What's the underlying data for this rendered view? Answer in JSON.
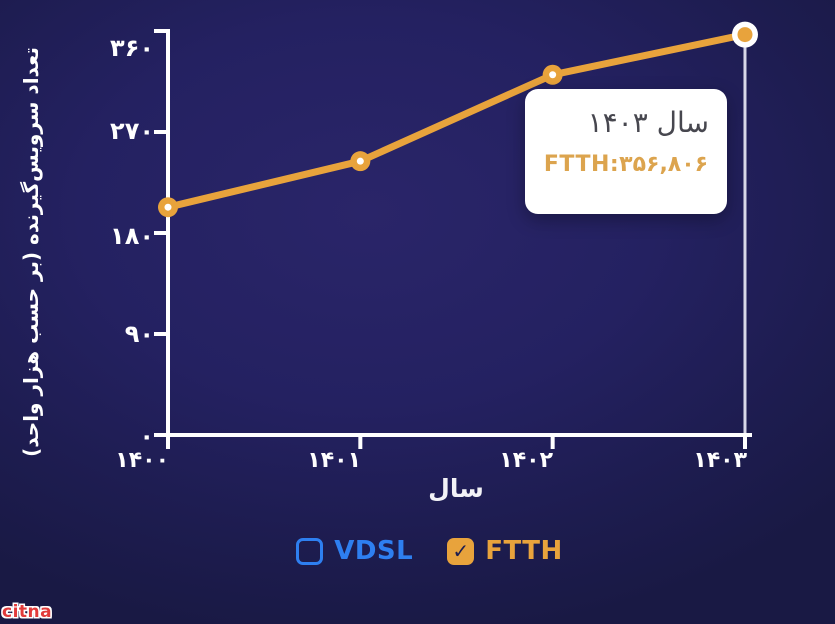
{
  "page": {
    "background_center_color": "#2A2569",
    "background_edge_color": "#191944",
    "axis_color": "#FFFFFF",
    "hover_line_color": "#D8D8E8"
  },
  "chart_data": {
    "type": "line",
    "title": "",
    "xlabel": "سال",
    "ylabel": "تعداد سرویس‌گیرنده (بر حسب هزار واحد)",
    "x": [
      1400,
      1401,
      1402,
      1403
    ],
    "x_tick_labels": [
      "۱۴۰۰",
      "۱۴۰۱",
      "۱۴۰۲",
      "۱۴۰۳"
    ],
    "y_ticks": [
      0,
      90,
      180,
      270,
      360
    ],
    "y_tick_labels": [
      "۰",
      "۹۰",
      "۱۸۰",
      "۲۷۰",
      "۳۶۰"
    ],
    "ylim": [
      0,
      360
    ],
    "grid": false,
    "legend_position": "bottom",
    "series": [
      {
        "name": "VDSL",
        "color": "#2E7FF0",
        "visible": false,
        "checked": false,
        "values": []
      },
      {
        "name": "FTTH",
        "color": "#E8A33C",
        "visible": true,
        "checked": true,
        "values": [
          203,
          244,
          321,
          356.8
        ]
      }
    ],
    "highlighted_point": {
      "series": "FTTH",
      "x": 1403,
      "value_units": 356806,
      "value_thousands": 356.8
    }
  },
  "tooltip": {
    "title": "سال ۱۴۰۳",
    "value_text": "FTTH:۳۵۶,۸۰۶",
    "title_color": "#47474F",
    "value_color": "#DCA44E",
    "background": "#FFFFFF"
  },
  "legend": {
    "items": [
      {
        "label": "VDSL",
        "color": "#2E7FF0",
        "checked": false,
        "check_glyph": ""
      },
      {
        "label": "FTTH",
        "color": "#E8A33C",
        "checked": true,
        "check_glyph": "✓",
        "check_color": "#1E1E50"
      }
    ]
  },
  "watermark": {
    "text": "citna",
    "color": "#E23B3B"
  }
}
